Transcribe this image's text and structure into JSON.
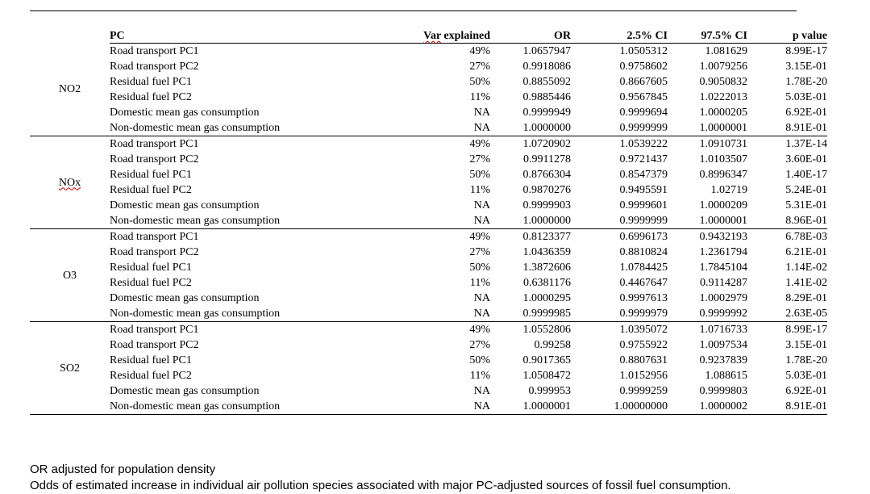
{
  "headers": {
    "pc": "PC",
    "var": "Var explained",
    "or": "OR",
    "ci_lo": "2.5% CI",
    "ci_hi": "97.5% CI",
    "p": "p value"
  },
  "groups": [
    {
      "species": "NO2",
      "rows": [
        {
          "pc": "Road transport PC1",
          "var": "49%",
          "or": "1.0657947",
          "lo": "1.0505312",
          "hi": "1.081629",
          "p": "8.99E-17"
        },
        {
          "pc": "Road transport PC2",
          "var": "27%",
          "or": "0.9918086",
          "lo": "0.9758602",
          "hi": "1.0079256",
          "p": "3.15E-01"
        },
        {
          "pc": "Residual fuel PC1",
          "var": "50%",
          "or": "0.8855092",
          "lo": "0.8667605",
          "hi": "0.9050832",
          "p": "1.78E-20"
        },
        {
          "pc": "Residual fuel PC2",
          "var": "11%",
          "or": "0.9885446",
          "lo": "0.9567845",
          "hi": "1.0222013",
          "p": "5.03E-01"
        },
        {
          "pc": "Domestic mean gas consumption",
          "var": "NA",
          "or": "0.9999949",
          "lo": "0.9999694",
          "hi": "1.0000205",
          "p": "6.92E-01"
        },
        {
          "pc": "Non-domestic mean gas consumption",
          "var": "NA",
          "or": "1.0000000",
          "lo": "0.9999999",
          "hi": "1.0000001",
          "p": "8.91E-01"
        }
      ]
    },
    {
      "species": "NOx",
      "rows": [
        {
          "pc": "Road transport PC1",
          "var": "49%",
          "or": "1.0720902",
          "lo": "1.0539222",
          "hi": "1.0910731",
          "p": "1.37E-14"
        },
        {
          "pc": "Road transport PC2",
          "var": "27%",
          "or": "0.9911278",
          "lo": "0.9721437",
          "hi": "1.0103507",
          "p": "3.60E-01"
        },
        {
          "pc": "Residual fuel PC1",
          "var": "50%",
          "or": "0.8766304",
          "lo": "0.8547379",
          "hi": "0.8996347",
          "p": "1.40E-17"
        },
        {
          "pc": "Residual fuel PC2",
          "var": "11%",
          "or": "0.9870276",
          "lo": "0.9495591",
          "hi": "1.02719",
          "p": "5.24E-01"
        },
        {
          "pc": "Domestic mean gas consumption",
          "var": "NA",
          "or": "0.9999903",
          "lo": "0.9999601",
          "hi": "1.0000209",
          "p": "5.31E-01"
        },
        {
          "pc": "Non-domestic mean gas consumption",
          "var": "NA",
          "or": "1.0000000",
          "lo": "0.9999999",
          "hi": "1.0000001",
          "p": "8.96E-01"
        }
      ]
    },
    {
      "species": "O3",
      "rows": [
        {
          "pc": "Road transport PC1",
          "var": "49%",
          "or": "0.8123377",
          "lo": "0.6996173",
          "hi": "0.9432193",
          "p": "6.78E-03"
        },
        {
          "pc": "Road transport PC2",
          "var": "27%",
          "or": "1.0436359",
          "lo": "0.8810824",
          "hi": "1.2361794",
          "p": "6.21E-01"
        },
        {
          "pc": "Residual fuel PC1",
          "var": "50%",
          "or": "1.3872606",
          "lo": "1.0784425",
          "hi": "1.7845104",
          "p": "1.14E-02"
        },
        {
          "pc": "Residual fuel PC2",
          "var": "11%",
          "or": "0.6381176",
          "lo": "0.4467647",
          "hi": "0.9114287",
          "p": "1.41E-02"
        },
        {
          "pc": "Domestic mean gas consumption",
          "var": "NA",
          "or": "1.0000295",
          "lo": "0.9997613",
          "hi": "1.0002979",
          "p": "8.29E-01"
        },
        {
          "pc": "Non-domestic mean gas consumption",
          "var": "NA",
          "or": "0.9999985",
          "lo": "0.9999979",
          "hi": "0.9999992",
          "p": "2.63E-05"
        }
      ]
    },
    {
      "species": "SO2",
      "rows": [
        {
          "pc": "Road transport PC1",
          "var": "49%",
          "or": "1.0552806",
          "lo": "1.0395072",
          "hi": "1.0716733",
          "p": "8.99E-17"
        },
        {
          "pc": "Road transport PC2",
          "var": "27%",
          "or": "0.99258",
          "lo": "0.9755922",
          "hi": "1.0097534",
          "p": "3.15E-01"
        },
        {
          "pc": "Residual fuel PC1",
          "var": "50%",
          "or": "0.9017365",
          "lo": "0.8807631",
          "hi": "0.9237839",
          "p": "1.78E-20"
        },
        {
          "pc": "Residual fuel PC2",
          "var": "11%",
          "or": "1.0508472",
          "lo": "1.0152956",
          "hi": "1.088615",
          "p": "5.03E-01"
        },
        {
          "pc": "Domestic mean gas consumption",
          "var": "NA",
          "or": "0.999953",
          "lo": "0.9999259",
          "hi": "0.9999803",
          "p": "6.92E-01"
        },
        {
          "pc": "Non-domestic mean gas consumption",
          "var": "NA",
          "or": "1.0000001",
          "lo": "1.00000000",
          "hi": "1.0000002",
          "p": "8.91E-01"
        }
      ]
    }
  ],
  "notes": {
    "line1": "OR adjusted for population density",
    "line2": "Odds of estimated increase in individual air pollution species associated with major PC-adjusted sources of fossil fuel consumption."
  }
}
